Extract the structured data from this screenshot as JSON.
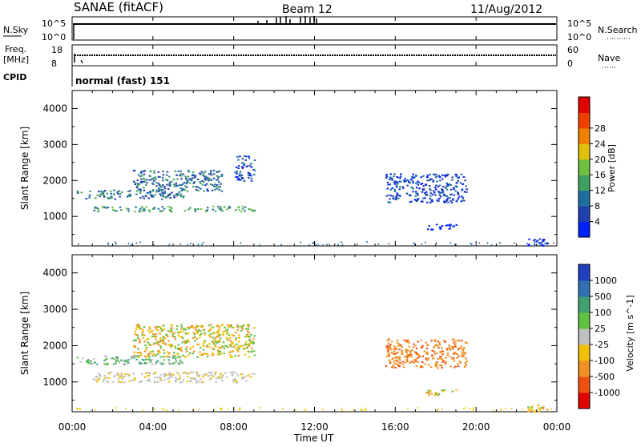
{
  "header": {
    "station": "SANAE (fitACF)",
    "beam": "Beam 12",
    "date": "11/Aug/2012"
  },
  "nsky_panel": {
    "left_label": "N.Sky",
    "right_label": "N.Search",
    "left_ticks": [
      "10^5",
      "10^0"
    ],
    "right_ticks": [
      "10^5",
      "10^0"
    ]
  },
  "freq_panel": {
    "left_label_1": "Freq.",
    "left_label_2": "[MHz]",
    "right_label": "Nave",
    "left_ticks": [
      "18",
      "8"
    ],
    "right_ticks": [
      "60",
      "0"
    ]
  },
  "cpid_panel": {
    "label": "CPID",
    "mode_text": "normal (fast) 151"
  },
  "time_axis": {
    "label": "Time UT",
    "ticks": [
      "00:00",
      "04:00",
      "08:00",
      "12:00",
      "16:00",
      "20:00",
      "00:00"
    ]
  },
  "chart_data": [
    {
      "type": "heatmap",
      "title": "Power",
      "ylabel": "Slant Range [km]",
      "xlabel": "Time UT",
      "ylim": [
        180,
        4500
      ],
      "xlim": [
        0,
        24
      ],
      "y_ticks": [
        1000,
        2000,
        3000,
        4000
      ],
      "colorbar": {
        "label": "Power [dB]",
        "ticks": [
          "4",
          "8",
          "12",
          "16",
          "20",
          "24",
          "28"
        ],
        "colors": [
          "#0020ff",
          "#2040b0",
          "#206ea0",
          "#40a060",
          "#70c040",
          "#e0c000",
          "#f08000",
          "#f04000",
          "#e00000"
        ]
      },
      "echo_regions": [
        {
          "t0": 0.2,
          "t1": 5.5,
          "r0": 1500,
          "r1": 1750,
          "level": 2
        },
        {
          "t0": 1.0,
          "t1": 9.0,
          "r0": 1150,
          "r1": 1300,
          "level": 3
        },
        {
          "t0": 3.0,
          "t1": 7.5,
          "r0": 1700,
          "r1": 2300,
          "level": 2
        },
        {
          "t0": 8.0,
          "t1": 9.0,
          "r0": 2000,
          "r1": 2700,
          "level": 1
        },
        {
          "t0": 15.5,
          "t1": 19.5,
          "r0": 1400,
          "r1": 2200,
          "level": 1
        },
        {
          "t0": 17.5,
          "t1": 19.0,
          "r0": 650,
          "r1": 800,
          "level": 0
        },
        {
          "t0": 22.5,
          "t1": 23.5,
          "r0": 200,
          "r1": 400,
          "level": 0
        }
      ]
    },
    {
      "type": "heatmap",
      "title": "Velocity",
      "ylabel": "Slant Range [km]",
      "xlabel": "Time UT",
      "ylim": [
        180,
        4500
      ],
      "xlim": [
        0,
        24
      ],
      "y_ticks": [
        1000,
        2000,
        3000,
        4000
      ],
      "colorbar": {
        "label": "Velocity [m s^-1]",
        "ticks": [
          "1000",
          "500",
          "100",
          "25",
          "-25",
          "-100",
          "-500",
          "-1000"
        ],
        "colors": [
          "#2040c0",
          "#3070b0",
          "#40a070",
          "#60c040",
          "#c0c0c0",
          "#f0c000",
          "#f09020",
          "#f05010",
          "#e00000"
        ]
      },
      "echo_regions": [
        {
          "t0": 0.2,
          "t1": 5.5,
          "r0": 1500,
          "r1": 1750,
          "velocity_class": "positive-low"
        },
        {
          "t0": 1.0,
          "t1": 9.0,
          "r0": 1000,
          "r1": 1300,
          "velocity_class": "near-zero"
        },
        {
          "t0": 3.0,
          "t1": 9.0,
          "r0": 1700,
          "r1": 2600,
          "velocity_class": "negative-low"
        },
        {
          "t0": 15.5,
          "t1": 19.5,
          "r0": 1400,
          "r1": 2200,
          "velocity_class": "negative-medium"
        },
        {
          "t0": 17.5,
          "t1": 19.0,
          "r0": 650,
          "r1": 800,
          "velocity_class": "negative-low"
        },
        {
          "t0": 22.5,
          "t1": 23.5,
          "r0": 200,
          "r1": 400,
          "velocity_class": "negative-low"
        }
      ]
    }
  ]
}
